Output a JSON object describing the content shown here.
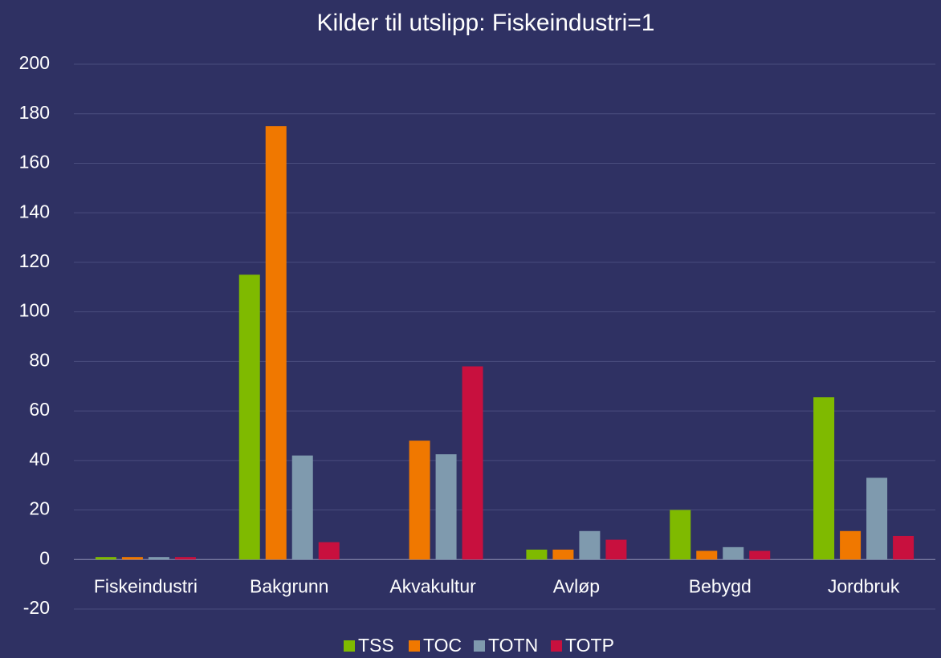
{
  "chart_data": {
    "type": "bar",
    "title": "Kilder til utslipp: Fiskeindustri=1",
    "categories": [
      "Fiskeindustri",
      "Bakgrunn",
      "Akvakultur",
      "Avløp",
      "Bebygd",
      "Jordbruk"
    ],
    "series": [
      {
        "name": "TSS",
        "color": "#7fba00",
        "values": [
          1,
          115,
          0,
          4,
          20,
          65.5
        ]
      },
      {
        "name": "TOC",
        "color": "#f07800",
        "values": [
          1,
          175,
          48,
          4,
          3.5,
          11.5
        ]
      },
      {
        "name": "TOTN",
        "color": "#7f9aae",
        "values": [
          1,
          42,
          42.5,
          11.5,
          5,
          33
        ]
      },
      {
        "name": "TOTP",
        "color": "#c8103e",
        "values": [
          1,
          7,
          78,
          8,
          3.5,
          9.5
        ]
      }
    ],
    "ylim": [
      -20,
      200
    ],
    "yticks": [
      -20,
      0,
      20,
      40,
      60,
      80,
      100,
      120,
      140,
      160,
      180,
      200
    ],
    "grid": true,
    "legend": "bottom"
  }
}
